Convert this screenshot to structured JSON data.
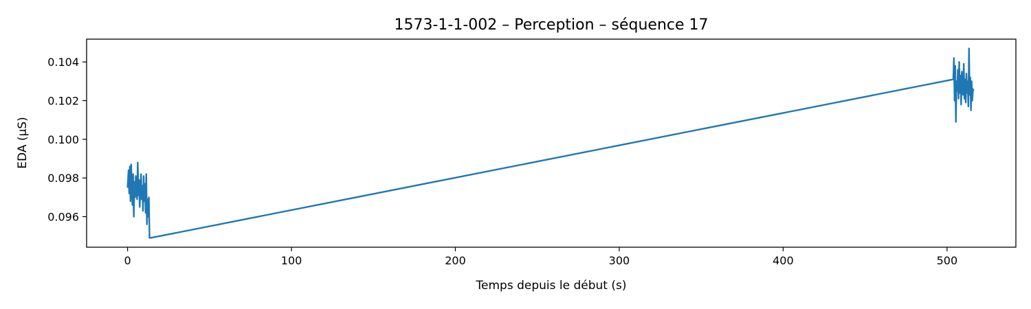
{
  "chart_data": {
    "type": "line",
    "title": "1573-1-1-002 – Perception – séquence 17",
    "xlabel": "Temps depuis le début (s)",
    "ylabel": "EDA (µS)",
    "xlim": [
      -25,
      542
    ],
    "ylim": [
      0.09442,
      0.10518
    ],
    "xticks": [
      0,
      100,
      200,
      300,
      400,
      500
    ],
    "yticks": [
      0.096,
      0.098,
      0.1,
      0.102,
      0.104
    ],
    "ytick_labels": [
      "0.096",
      "0.098",
      "0.100",
      "0.102",
      "0.104"
    ],
    "grid": false,
    "legend": "none",
    "series": [
      {
        "color": "#1f77b4",
        "x": [
          0.0,
          0.6,
          1.0,
          1.4,
          1.8,
          2.2,
          2.6,
          3.0,
          3.4,
          3.8,
          4.2,
          4.6,
          5.0,
          5.4,
          5.8,
          6.2,
          6.6,
          7.0,
          7.4,
          7.8,
          8.2,
          8.6,
          9.0,
          9.4,
          9.8,
          10.2,
          10.6,
          11.0,
          11.4,
          11.8,
          12.2,
          12.6,
          13.0,
          13.4,
          14.0,
          503.8,
          504.2,
          504.6,
          505.0,
          505.4,
          505.8,
          506.2,
          506.6,
          507.0,
          507.4,
          507.8,
          508.2,
          508.6,
          509.0,
          509.4,
          509.8,
          510.2,
          510.6,
          511.0,
          511.4,
          511.8,
          512.2,
          512.6,
          513.0,
          513.4,
          513.8,
          514.2,
          514.6,
          515.0,
          515.4,
          515.8,
          516.2
        ],
        "y": [
          0.0975,
          0.0984,
          0.0972,
          0.0986,
          0.0968,
          0.0987,
          0.0974,
          0.0966,
          0.0982,
          0.096,
          0.0978,
          0.097,
          0.0981,
          0.0974,
          0.0969,
          0.0988,
          0.0971,
          0.0979,
          0.0965,
          0.0974,
          0.0982,
          0.0969,
          0.0976,
          0.0963,
          0.0981,
          0.0968,
          0.0977,
          0.0962,
          0.0982,
          0.0956,
          0.0969,
          0.096,
          0.097,
          0.0949,
          0.0949,
          0.1031,
          0.1042,
          0.102,
          0.1038,
          0.1009,
          0.103,
          0.1025,
          0.1036,
          0.1021,
          0.104,
          0.1024,
          0.1033,
          0.1018,
          0.1035,
          0.1027,
          0.1023,
          0.1039,
          0.1021,
          0.1031,
          0.1019,
          0.1034,
          0.1024,
          0.103,
          0.1017,
          0.1047,
          0.1023,
          0.1032,
          0.1015,
          0.103,
          0.102,
          0.1026,
          0.1025
        ]
      }
    ]
  }
}
